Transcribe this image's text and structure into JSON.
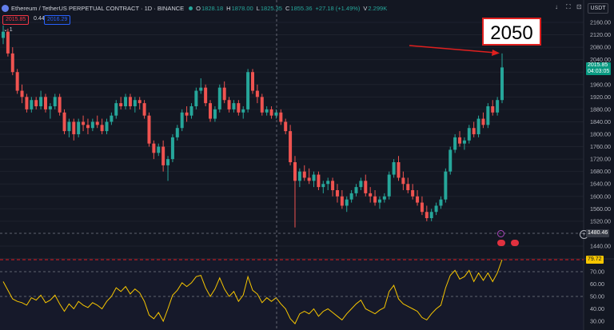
{
  "header": {
    "symbol_title": "Ethereum / TetherUS PERPETUAL CONTRACT · 1D · BINANCE",
    "open_label": "O",
    "open_value": "1828.18",
    "high_label": "H",
    "high_value": "1878.00",
    "low_label": "L",
    "low_value": "1825.35",
    "close_label": "C",
    "close_value": "1855.36",
    "change_value": "+27.18 (+1.49%)",
    "volume_value": "2.299K"
  },
  "price_boxes": {
    "bid": "2015.85",
    "spread": "0.44",
    "ask": "2016.29"
  },
  "indicator_toggle": "⌄ 1",
  "toolbar": {
    "currency": "USDT",
    "download_icon": "download-icon",
    "fullscreen_icon": "fullscreen-icon",
    "camera_icon": "camera-icon",
    "cloud_icon": "cloud-icon"
  },
  "annotation": {
    "text": "2050",
    "color": "#e0201f"
  },
  "labels": {
    "last_price": "2015.85",
    "countdown": "04:03:05",
    "crosshair_price": "1480.46",
    "rsi_value": "79.72"
  },
  "price_axis": [
    "2160.00",
    "2120.00",
    "2080.00",
    "2040.00",
    "2000.00",
    "1960.00",
    "1920.00",
    "1880.00",
    "1840.00",
    "1800.00",
    "1760.00",
    "1720.00",
    "1680.00",
    "1640.00",
    "1600.00",
    "1560.00",
    "1520.00",
    "1440.00"
  ],
  "rsi_axis": [
    "70.00",
    "60.00",
    "50.00",
    "40.00",
    "30.00"
  ],
  "colors": {
    "up": "#26a69a",
    "down": "#ef5350",
    "rsi": "#f7c600",
    "background": "#131722"
  },
  "chart_data": {
    "type": "candlestick",
    "ylim": [
      1420,
      2180
    ],
    "ohlc": [
      [
        2110,
        2150,
        2090,
        2130
      ],
      [
        2130,
        2140,
        2050,
        2060
      ],
      [
        2060,
        2080,
        1990,
        2000
      ],
      [
        2000,
        2010,
        1930,
        1940
      ],
      [
        1940,
        1960,
        1900,
        1920
      ],
      [
        1920,
        1930,
        1870,
        1880
      ],
      [
        1880,
        1920,
        1870,
        1910
      ],
      [
        1910,
        1920,
        1880,
        1890
      ],
      [
        1890,
        1940,
        1880,
        1920
      ],
      [
        1920,
        1930,
        1870,
        1880
      ],
      [
        1880,
        1900,
        1850,
        1890
      ],
      [
        1890,
        1930,
        1880,
        1920
      ],
      [
        1920,
        1930,
        1860,
        1870
      ],
      [
        1870,
        1880,
        1800,
        1810
      ],
      [
        1810,
        1850,
        1790,
        1840
      ],
      [
        1840,
        1850,
        1780,
        1800
      ],
      [
        1800,
        1850,
        1790,
        1840
      ],
      [
        1840,
        1860,
        1810,
        1830
      ],
      [
        1830,
        1850,
        1800,
        1820
      ],
      [
        1820,
        1850,
        1810,
        1840
      ],
      [
        1840,
        1860,
        1820,
        1830
      ],
      [
        1830,
        1850,
        1800,
        1810
      ],
      [
        1810,
        1850,
        1800,
        1840
      ],
      [
        1840,
        1870,
        1830,
        1860
      ],
      [
        1860,
        1910,
        1850,
        1900
      ],
      [
        1900,
        1920,
        1880,
        1890
      ],
      [
        1890,
        1930,
        1880,
        1920
      ],
      [
        1920,
        1930,
        1880,
        1890
      ],
      [
        1890,
        1920,
        1870,
        1910
      ],
      [
        1910,
        1920,
        1880,
        1900
      ],
      [
        1900,
        1910,
        1850,
        1860
      ],
      [
        1860,
        1870,
        1760,
        1770
      ],
      [
        1770,
        1780,
        1720,
        1740
      ],
      [
        1740,
        1770,
        1730,
        1760
      ],
      [
        1760,
        1780,
        1680,
        1700
      ],
      [
        1700,
        1730,
        1650,
        1720
      ],
      [
        1720,
        1800,
        1710,
        1790
      ],
      [
        1790,
        1830,
        1780,
        1820
      ],
      [
        1820,
        1880,
        1810,
        1870
      ],
      [
        1870,
        1890,
        1840,
        1860
      ],
      [
        1860,
        1900,
        1850,
        1890
      ],
      [
        1890,
        1950,
        1880,
        1940
      ],
      [
        1940,
        1980,
        1930,
        1950
      ],
      [
        1950,
        1960,
        1890,
        1900
      ],
      [
        1900,
        1910,
        1840,
        1850
      ],
      [
        1850,
        1890,
        1840,
        1880
      ],
      [
        1880,
        1960,
        1870,
        1950
      ],
      [
        1950,
        1970,
        1900,
        1910
      ],
      [
        1910,
        1920,
        1870,
        1880
      ],
      [
        1880,
        1910,
        1870,
        1900
      ],
      [
        1900,
        1910,
        1860,
        1870
      ],
      [
        1870,
        1890,
        1850,
        1880
      ],
      [
        1880,
        2010,
        1870,
        2000
      ],
      [
        2000,
        2010,
        1930,
        1940
      ],
      [
        1940,
        1960,
        1900,
        1920
      ],
      [
        1920,
        1930,
        1860,
        1870
      ],
      [
        1870,
        1890,
        1860,
        1880
      ],
      [
        1880,
        1890,
        1850,
        1860
      ],
      [
        1860,
        1880,
        1850,
        1870
      ],
      [
        1870,
        1880,
        1830,
        1840
      ],
      [
        1840,
        1850,
        1800,
        1810
      ],
      [
        1810,
        1830,
        1700,
        1710
      ],
      [
        1710,
        1730,
        1500,
        1650
      ],
      [
        1650,
        1690,
        1630,
        1680
      ],
      [
        1680,
        1700,
        1650,
        1660
      ],
      [
        1660,
        1690,
        1640,
        1650
      ],
      [
        1650,
        1680,
        1630,
        1670
      ],
      [
        1670,
        1680,
        1620,
        1630
      ],
      [
        1630,
        1650,
        1610,
        1640
      ],
      [
        1640,
        1660,
        1620,
        1650
      ],
      [
        1650,
        1660,
        1600,
        1620
      ],
      [
        1620,
        1640,
        1580,
        1600
      ],
      [
        1600,
        1620,
        1560,
        1570
      ],
      [
        1570,
        1600,
        1550,
        1590
      ],
      [
        1590,
        1620,
        1580,
        1610
      ],
      [
        1610,
        1640,
        1600,
        1630
      ],
      [
        1630,
        1660,
        1620,
        1650
      ],
      [
        1650,
        1670,
        1600,
        1610
      ],
      [
        1610,
        1630,
        1580,
        1600
      ],
      [
        1600,
        1620,
        1570,
        1580
      ],
      [
        1580,
        1600,
        1560,
        1590
      ],
      [
        1590,
        1610,
        1580,
        1600
      ],
      [
        1600,
        1680,
        1590,
        1670
      ],
      [
        1670,
        1720,
        1660,
        1710
      ],
      [
        1710,
        1730,
        1650,
        1660
      ],
      [
        1660,
        1680,
        1620,
        1640
      ],
      [
        1640,
        1660,
        1610,
        1620
      ],
      [
        1620,
        1640,
        1590,
        1600
      ],
      [
        1600,
        1620,
        1570,
        1580
      ],
      [
        1580,
        1600,
        1540,
        1550
      ],
      [
        1550,
        1570,
        1520,
        1530
      ],
      [
        1530,
        1560,
        1520,
        1550
      ],
      [
        1550,
        1580,
        1540,
        1570
      ],
      [
        1570,
        1600,
        1560,
        1590
      ],
      [
        1590,
        1690,
        1580,
        1680
      ],
      [
        1680,
        1760,
        1670,
        1750
      ],
      [
        1750,
        1800,
        1740,
        1790
      ],
      [
        1790,
        1810,
        1760,
        1770
      ],
      [
        1770,
        1790,
        1750,
        1780
      ],
      [
        1780,
        1830,
        1770,
        1820
      ],
      [
        1820,
        1840,
        1790,
        1800
      ],
      [
        1800,
        1860,
        1790,
        1850
      ],
      [
        1850,
        1870,
        1820,
        1830
      ],
      [
        1830,
        1900,
        1820,
        1890
      ],
      [
        1890,
        1910,
        1860,
        1870
      ],
      [
        1870,
        1920,
        1860,
        1910
      ],
      [
        1910,
        2060,
        1900,
        2015
      ]
    ],
    "rsi": [
      62,
      55,
      48,
      46,
      45,
      43,
      49,
      47,
      51,
      45,
      47,
      51,
      44,
      38,
      44,
      40,
      46,
      43,
      41,
      45,
      43,
      40,
      46,
      50,
      57,
      54,
      58,
      52,
      56,
      53,
      46,
      35,
      32,
      37,
      30,
      40,
      51,
      55,
      61,
      58,
      61,
      66,
      67,
      57,
      50,
      56,
      65,
      56,
      50,
      54,
      46,
      51,
      66,
      55,
      52,
      45,
      49,
      46,
      49,
      44,
      40,
      32,
      28,
      36,
      38,
      36,
      40,
      34,
      38,
      40,
      37,
      34,
      31,
      36,
      40,
      44,
      47,
      40,
      38,
      36,
      39,
      41,
      54,
      59,
      48,
      44,
      42,
      40,
      38,
      33,
      31,
      36,
      40,
      43,
      57,
      67,
      71,
      64,
      66,
      71,
      62,
      69,
      63,
      69,
      62,
      69,
      80
    ]
  }
}
